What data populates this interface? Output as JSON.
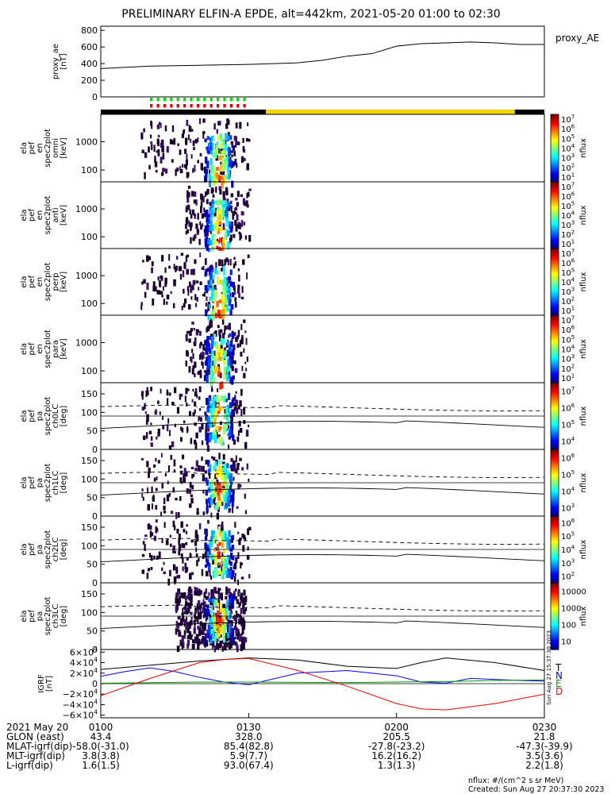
{
  "title": "PRELIMINARY ELFIN-A EPDE, alt=442km, 2021-05-20 01:00 to 02:30",
  "chart_data": {
    "type": "spectrogram",
    "time_range": [
      "01:00",
      "02:30"
    ],
    "panels": [
      {
        "id": "proxy_ae",
        "kind": "line",
        "ylabel": [
          "proxy_ae",
          "[nT]"
        ],
        "side_label": "proxy_AE",
        "ylim": [
          0,
          850
        ],
        "yticks": [
          "0",
          "200",
          "400",
          "600",
          "800"
        ],
        "series": [
          {
            "t": [
              0,
              10,
              20,
              30,
              40,
              45,
              50,
              55,
              60,
              65,
              70,
              75,
              80,
              85,
              90
            ],
            "v": [
              340,
              370,
              380,
              390,
              410,
              440,
              490,
              520,
              610,
              640,
              650,
              660,
              650,
              630,
              630
            ]
          }
        ]
      },
      {
        "id": "en_omni",
        "kind": "spec-energy",
        "ylabel": [
          "ela",
          "pef",
          "en",
          "spec2plot",
          "omni",
          "[keV]"
        ],
        "yticks": [
          "100",
          "1000"
        ],
        "cbar": {
          "label": "nflux",
          "ticks": [
            "10^1",
            "10^2",
            "10^3",
            "10^4",
            "10^5",
            "10^6",
            "10^7"
          ]
        }
      },
      {
        "id": "en_anti",
        "kind": "spec-energy",
        "ylabel": [
          "ela",
          "pef",
          "en",
          "spec2plot",
          "anti",
          "[keV]"
        ],
        "yticks": [
          "100",
          "1000"
        ],
        "cbar": {
          "label": "nflux",
          "ticks": [
            "10^1",
            "10^2",
            "10^3",
            "10^4",
            "10^5",
            "10^6",
            "10^7"
          ]
        }
      },
      {
        "id": "en_perp",
        "kind": "spec-energy",
        "ylabel": [
          "ela",
          "pef",
          "en",
          "spec2plot",
          "perp",
          "[keV]"
        ],
        "yticks": [
          "100",
          "1000"
        ],
        "cbar": {
          "label": "nflux",
          "ticks": [
            "10^1",
            "10^2",
            "10^3",
            "10^4",
            "10^5",
            "10^6",
            "10^7"
          ]
        }
      },
      {
        "id": "en_para",
        "kind": "spec-energy",
        "ylabel": [
          "ela",
          "pef",
          "en",
          "spec2plot",
          "para",
          "[keV]"
        ],
        "yticks": [
          "100",
          "1000"
        ],
        "cbar": {
          "label": "nflux",
          "ticks": [
            "10^1",
            "10^2",
            "10^3",
            "10^4",
            "10^5",
            "10^6",
            "10^7"
          ]
        }
      },
      {
        "id": "pa_ch0",
        "kind": "spec-pa",
        "ylabel": [
          "ela",
          "pef",
          "pa",
          "spec2plot",
          "ch0LC",
          "[deg]"
        ],
        "yticks": [
          "0",
          "50",
          "100",
          "150"
        ],
        "cbar": {
          "label": "nflux",
          "ticks": [
            "10^4",
            "10^5",
            "10^6",
            "10^7"
          ]
        }
      },
      {
        "id": "pa_ch1",
        "kind": "spec-pa",
        "ylabel": [
          "ela",
          "pef",
          "pa",
          "spec2plot",
          "ch1LC",
          "[deg]"
        ],
        "yticks": [
          "0",
          "50",
          "100",
          "150"
        ],
        "cbar": {
          "label": "nflux",
          "ticks": [
            "10^3",
            "10^4",
            "10^5",
            "10^6"
          ]
        }
      },
      {
        "id": "pa_ch2",
        "kind": "spec-pa",
        "ylabel": [
          "ela",
          "pef",
          "pa",
          "spec2plot",
          "ch2LC",
          "[deg]"
        ],
        "yticks": [
          "0",
          "50",
          "100",
          "150"
        ],
        "cbar": {
          "label": "nflux",
          "ticks": [
            "10^2",
            "10^3",
            "10^4",
            "10^5",
            "10^6"
          ]
        }
      },
      {
        "id": "pa_ch3",
        "kind": "spec-pa",
        "ylabel": [
          "ela",
          "pef",
          "pa",
          "spec2plot",
          "ch3LC",
          "[deg]"
        ],
        "yticks": [
          "0",
          "50",
          "100",
          "150"
        ],
        "cbar": {
          "label": "nflux",
          "ticks": [
            "10",
            "100",
            "1000",
            "10000"
          ]
        }
      },
      {
        "id": "igrf",
        "kind": "lines",
        "ylabel": [
          "IGRF",
          "[nT]"
        ],
        "ylim": [
          -65000,
          65000
        ],
        "yticks": [
          "−6×10^4",
          "−4×10^4",
          "−2×10^4",
          "0",
          "2×10^4",
          "4×10^4",
          "6×10^4"
        ],
        "legend": [
          "T",
          "N",
          "E",
          "D"
        ],
        "series": [
          {
            "name": "T",
            "color": "#000000",
            "t": [
              0,
              20,
              30,
              40,
              50,
              60,
              65,
              70,
              80,
              90
            ],
            "v": [
              27000,
              43000,
              49000,
              45000,
              33000,
              29000,
              40000,
              49000,
              40000,
              25000
            ]
          },
          {
            "name": "N",
            "color": "#0000ff",
            "t": [
              0,
              5,
              10,
              15,
              20,
              25,
              30,
              40,
              50,
              60,
              65,
              70,
              75,
              80,
              85,
              90
            ],
            "v": [
              14000,
              23000,
              30000,
              23000,
              12000,
              3000,
              -2000,
              20000,
              25000,
              15000,
              3000,
              1000,
              10000,
              8000,
              6000,
              5000
            ]
          },
          {
            "name": "E",
            "color": "#00a000",
            "t": [
              0,
              20,
              30,
              50,
              60,
              70,
              75,
              80,
              90
            ],
            "v": [
              800,
              3000,
              3000,
              2000,
              3000,
              4000,
              5000,
              6000,
              7000
            ]
          },
          {
            "name": "D",
            "color": "#ff0000",
            "t": [
              0,
              10,
              20,
              25,
              30,
              40,
              50,
              60,
              65,
              70,
              80,
              90
            ],
            "v": [
              -23000,
              10000,
              40000,
              46000,
              48000,
              25000,
              -5000,
              -38000,
              -48000,
              -50000,
              -38000,
              -20000
            ]
          }
        ]
      }
    ],
    "xlabels": [
      {
        "row": "2021 May 20",
        "ticks": [
          "0100",
          "0130",
          "0200",
          "0230"
        ]
      },
      {
        "row": "GLON (east)",
        "ticks": [
          "43.4",
          "328.0",
          "205.5",
          "21.8"
        ]
      },
      {
        "row": "MLAT-igrf(dip)",
        "ticks": [
          "-58.0(-31.0)",
          "85.4(82.8)",
          "-27.8(-23.2)",
          "-47.3(-39.9)"
        ]
      },
      {
        "row": "MLT-igrf(dip)",
        "ticks": [
          "3.8(3.8)",
          "5.9(7.7)",
          "16.2(16.2)",
          "3.5(3.6)"
        ]
      },
      {
        "row": "L-igrf(dip)",
        "ticks": [
          "1.6(1.5)",
          "93.0(67.4)",
          "1.3(1.3)",
          "2.2(1.8)"
        ]
      }
    ]
  },
  "footer": {
    "units": "nflux: #/(cm^2 s sr MeV)",
    "created": "Created: Sun Aug 27 20:37:30 2023",
    "stamp": "Sun Aug 27 15:37:30 2023"
  }
}
